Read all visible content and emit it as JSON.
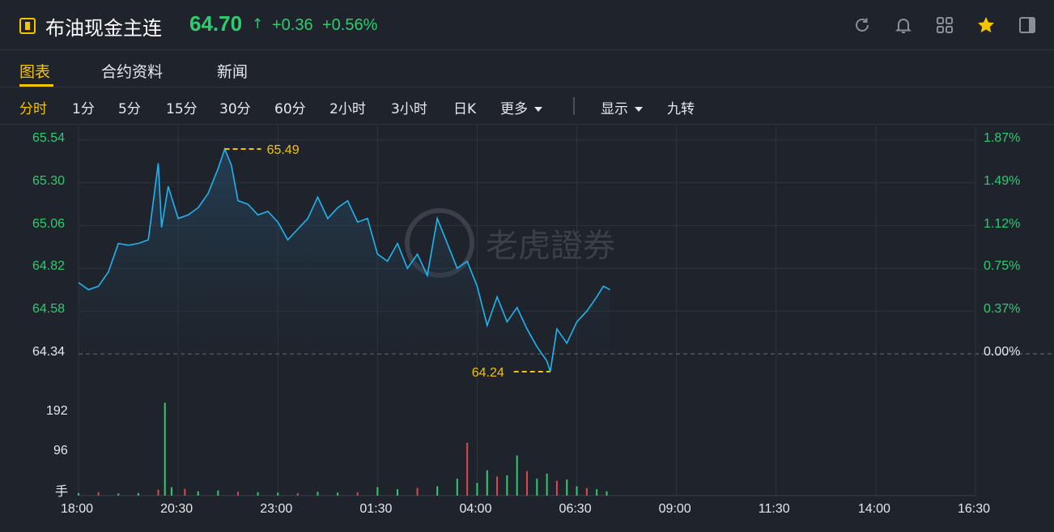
{
  "header": {
    "title": "布油现金主连",
    "price": "64.70",
    "arrow": "↑",
    "change": "+0.36",
    "change_pct": "+0.56%",
    "icons": [
      "refresh-icon",
      "bell-icon",
      "grid-icon",
      "star-icon",
      "panel-icon"
    ]
  },
  "tabs": [
    {
      "label": "图表",
      "active": true
    },
    {
      "label": "合约资料",
      "active": false
    },
    {
      "label": "新闻",
      "active": false
    }
  ],
  "periods": [
    {
      "label": "分时",
      "active": true
    },
    {
      "label": "1分"
    },
    {
      "label": "5分"
    },
    {
      "label": "15分"
    },
    {
      "label": "30分"
    },
    {
      "label": "60分"
    },
    {
      "label": "2小时"
    },
    {
      "label": "3小时"
    },
    {
      "label": "日K"
    },
    {
      "label": "更多"
    },
    {
      "label": "显示"
    },
    {
      "label": "九转"
    }
  ],
  "watermark": "老虎證券",
  "colors": {
    "up": "#2ecc71",
    "accent": "#f5c400",
    "line": "#1fb5f0",
    "volume_up": "#2ecc71",
    "volume_down": "#e0474c"
  },
  "chart_data": {
    "type": "line",
    "title": "",
    "y_left_ticks": [
      "65.54",
      "65.30",
      "65.06",
      "64.82",
      "64.58",
      "64.34"
    ],
    "y_right_ticks": [
      "1.87%",
      "1.49%",
      "1.12%",
      "0.75%",
      "0.37%",
      "0.00%"
    ],
    "volume_ticks": [
      "192",
      "96",
      "手"
    ],
    "x_ticks": [
      "18:00",
      "20:30",
      "23:00",
      "01:30",
      "04:00",
      "06:30",
      "09:00",
      "11:30",
      "14:00",
      "16:30"
    ],
    "ylim": [
      64.34,
      65.54
    ],
    "prev_close": 64.34,
    "high_label": "65.49",
    "low_label": "64.24",
    "high": {
      "time": "21:40",
      "value": 65.49
    },
    "low": {
      "time": "05:50",
      "value": 64.24
    },
    "series": [
      {
        "values": [
          [
            "18:00",
            64.74
          ],
          [
            "18:15",
            64.7
          ],
          [
            "18:30",
            64.72
          ],
          [
            "18:45",
            64.8
          ],
          [
            "19:00",
            64.96
          ],
          [
            "19:15",
            64.95
          ],
          [
            "19:30",
            64.96
          ],
          [
            "19:45",
            64.98
          ],
          [
            "20:00",
            65.41
          ],
          [
            "20:05",
            65.05
          ],
          [
            "20:15",
            65.28
          ],
          [
            "20:30",
            65.1
          ],
          [
            "20:45",
            65.12
          ],
          [
            "21:00",
            65.16
          ],
          [
            "21:15",
            65.24
          ],
          [
            "21:30",
            65.38
          ],
          [
            "21:40",
            65.49
          ],
          [
            "21:50",
            65.4
          ],
          [
            "22:00",
            65.2
          ],
          [
            "22:15",
            65.18
          ],
          [
            "22:30",
            65.12
          ],
          [
            "22:45",
            65.14
          ],
          [
            "23:00",
            65.08
          ],
          [
            "23:15",
            64.98
          ],
          [
            "23:30",
            65.04
          ],
          [
            "23:45",
            65.1
          ],
          [
            "00:00",
            65.22
          ],
          [
            "00:15",
            65.1
          ],
          [
            "00:30",
            65.16
          ],
          [
            "00:45",
            65.2
          ],
          [
            "01:00",
            65.08
          ],
          [
            "01:15",
            65.1
          ],
          [
            "01:30",
            64.9
          ],
          [
            "01:45",
            64.86
          ],
          [
            "02:00",
            64.96
          ],
          [
            "02:15",
            64.82
          ],
          [
            "02:30",
            64.9
          ],
          [
            "02:45",
            64.78
          ],
          [
            "03:00",
            65.1
          ],
          [
            "03:15",
            64.96
          ],
          [
            "03:30",
            64.82
          ],
          [
            "03:45",
            64.86
          ],
          [
            "04:00",
            64.72
          ],
          [
            "04:15",
            64.5
          ],
          [
            "04:30",
            64.66
          ],
          [
            "04:45",
            64.52
          ],
          [
            "05:00",
            64.6
          ],
          [
            "05:15",
            64.48
          ],
          [
            "05:30",
            64.38
          ],
          [
            "05:45",
            64.3
          ],
          [
            "05:50",
            64.24
          ],
          [
            "06:00",
            64.48
          ],
          [
            "06:15",
            64.4
          ],
          [
            "06:30",
            64.52
          ],
          [
            "06:45",
            64.58
          ],
          [
            "07:00",
            64.66
          ],
          [
            "07:10",
            64.72
          ],
          [
            "07:20",
            64.7
          ]
        ]
      }
    ],
    "volume": [
      [
        "18:00",
        6
      ],
      [
        "18:30",
        8
      ],
      [
        "19:00",
        5
      ],
      [
        "19:30",
        6
      ],
      [
        "20:00",
        14
      ],
      [
        "20:10",
        220
      ],
      [
        "20:20",
        20
      ],
      [
        "20:40",
        16
      ],
      [
        "21:00",
        10
      ],
      [
        "21:30",
        12
      ],
      [
        "22:00",
        9
      ],
      [
        "22:30",
        8
      ],
      [
        "23:00",
        7
      ],
      [
        "23:30",
        6
      ],
      [
        "00:00",
        9
      ],
      [
        "00:30",
        7
      ],
      [
        "01:00",
        8
      ],
      [
        "01:30",
        20
      ],
      [
        "02:00",
        15
      ],
      [
        "02:30",
        18
      ],
      [
        "03:00",
        22
      ],
      [
        "03:30",
        40
      ],
      [
        "03:45",
        125
      ],
      [
        "04:00",
        30
      ],
      [
        "04:15",
        60
      ],
      [
        "04:30",
        45
      ],
      [
        "04:45",
        48
      ],
      [
        "05:00",
        95
      ],
      [
        "05:15",
        58
      ],
      [
        "05:30",
        40
      ],
      [
        "05:45",
        52
      ],
      [
        "06:00",
        35
      ],
      [
        "06:15",
        38
      ],
      [
        "06:30",
        22
      ],
      [
        "06:45",
        18
      ],
      [
        "07:00",
        15
      ],
      [
        "07:15",
        10
      ]
    ]
  }
}
